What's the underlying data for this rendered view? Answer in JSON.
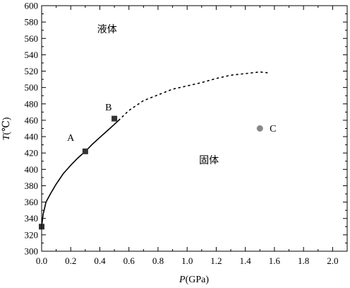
{
  "chart_data": {
    "type": "line",
    "title": "",
    "xlabel_italic": "P",
    "xlabel_rest": "(GPa)",
    "ylabel_italic": "T",
    "ylabel_rest": "(℃)",
    "xlim": [
      0.0,
      2.1
    ],
    "ylim": [
      300,
      600
    ],
    "x_ticks": [
      "0.0",
      "0.2",
      "0.4",
      "0.6",
      "0.8",
      "1.0",
      "1.2",
      "1.4",
      "1.6",
      "1.8",
      "2.0"
    ],
    "y_ticks": [
      "300",
      "320",
      "340",
      "360",
      "380",
      "400",
      "420",
      "440",
      "460",
      "480",
      "500",
      "520",
      "540",
      "560",
      "580",
      "600"
    ],
    "series": [
      {
        "style": "solid",
        "x": [
          0.0,
          0.01,
          0.03,
          0.06,
          0.1,
          0.15,
          0.2,
          0.25,
          0.3,
          0.35,
          0.4,
          0.45,
          0.5,
          0.53
        ],
        "y": [
          330,
          345,
          360,
          370,
          382,
          395,
          405,
          414,
          422,
          431,
          439,
          447,
          455,
          460
        ]
      },
      {
        "style": "dotted",
        "x": [
          0.53,
          0.6,
          0.7,
          0.8,
          0.9,
          1.0,
          1.1,
          1.2,
          1.3,
          1.4,
          1.5,
          1.55
        ],
        "y": [
          460,
          472,
          484,
          491,
          498,
          502,
          506,
          511,
          515,
          517,
          519,
          518
        ]
      }
    ],
    "points": [
      {
        "x": 0.0,
        "y": 330,
        "marker": "square",
        "color": "#333333"
      },
      {
        "x": 0.3,
        "y": 422,
        "marker": "square",
        "color": "#333333"
      },
      {
        "x": 0.5,
        "y": 462,
        "marker": "square",
        "color": "#333333"
      },
      {
        "x": 1.5,
        "y": 450,
        "marker": "circle",
        "color": "#888888"
      }
    ],
    "annotations": [
      {
        "text": "A",
        "x": 0.2,
        "y": 435
      },
      {
        "text": "B",
        "x": 0.46,
        "y": 472
      },
      {
        "text": "C",
        "x": 1.59,
        "y": 446
      },
      {
        "text": "液体",
        "x": 0.45,
        "y": 567
      },
      {
        "text": "固体",
        "x": 1.15,
        "y": 407
      }
    ]
  }
}
